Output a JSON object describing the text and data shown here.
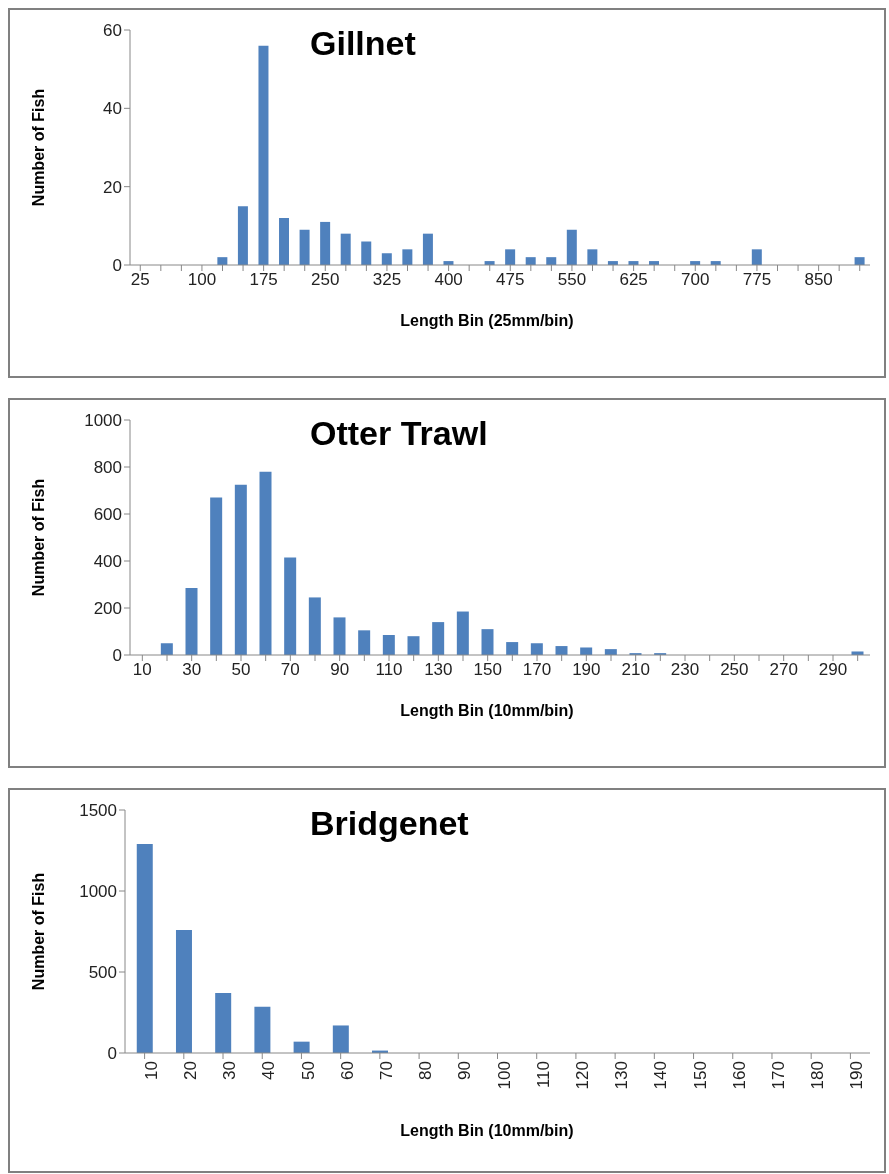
{
  "chart_data": [
    {
      "type": "bar",
      "title": "Gillnet",
      "xlabel": "Length Bin (25mm/bin)",
      "ylabel": "Number of Fish",
      "color": "#4f81bd",
      "categories": [
        "25",
        null,
        null,
        "100",
        null,
        null,
        "175",
        null,
        null,
        "250",
        null,
        null,
        "325",
        null,
        null,
        "400",
        null,
        null,
        "475",
        null,
        null,
        "550",
        null,
        null,
        "625",
        null,
        null,
        "700",
        null,
        null,
        "775",
        null,
        null,
        "850",
        null,
        null
      ],
      "values": [
        0,
        0,
        0,
        0,
        2,
        15,
        56,
        12,
        9,
        11,
        8,
        6,
        3,
        4,
        8,
        1,
        0,
        1,
        4,
        2,
        2,
        9,
        4,
        1,
        1,
        1,
        0,
        1,
        1,
        0,
        4,
        0,
        0,
        0,
        0,
        2
      ],
      "ylim": [
        0,
        60
      ],
      "yticks": [
        0,
        20,
        40,
        60
      ]
    },
    {
      "type": "bar",
      "title": "Otter Trawl",
      "xlabel": "Length Bin (10mm/bin)",
      "ylabel": "Number of Fish",
      "color": "#4f81bd",
      "categories": [
        "10",
        null,
        "30",
        null,
        "50",
        null,
        "70",
        null,
        "90",
        null,
        "110",
        null,
        "130",
        null,
        "150",
        null,
        "170",
        null,
        "190",
        null,
        "210",
        null,
        "230",
        null,
        "250",
        null,
        "270",
        null,
        "290",
        null
      ],
      "values": [
        0,
        50,
        285,
        670,
        725,
        780,
        415,
        245,
        160,
        105,
        85,
        80,
        140,
        185,
        110,
        55,
        50,
        38,
        32,
        25,
        8,
        8,
        0,
        0,
        0,
        0,
        0,
        0,
        0,
        15
      ],
      "ylim": [
        0,
        1000
      ],
      "yticks": [
        0,
        200,
        400,
        600,
        800,
        1000
      ]
    },
    {
      "type": "bar",
      "title": "Bridgenet",
      "xlabel": "Length Bin (10mm/bin)",
      "ylabel": "Number of Fish",
      "color": "#4f81bd",
      "categories": [
        "10",
        "20",
        "30",
        "40",
        "50",
        "60",
        "70",
        "80",
        "90",
        "100",
        "110",
        "120",
        "130",
        "140",
        "150",
        "160",
        "170",
        "180",
        "190"
      ],
      "values": [
        1290,
        760,
        370,
        285,
        70,
        170,
        15,
        0,
        0,
        0,
        0,
        0,
        0,
        0,
        0,
        0,
        0,
        0,
        0
      ],
      "ylim": [
        0,
        1500
      ],
      "yticks": [
        0,
        500,
        1000,
        1500
      ]
    }
  ]
}
